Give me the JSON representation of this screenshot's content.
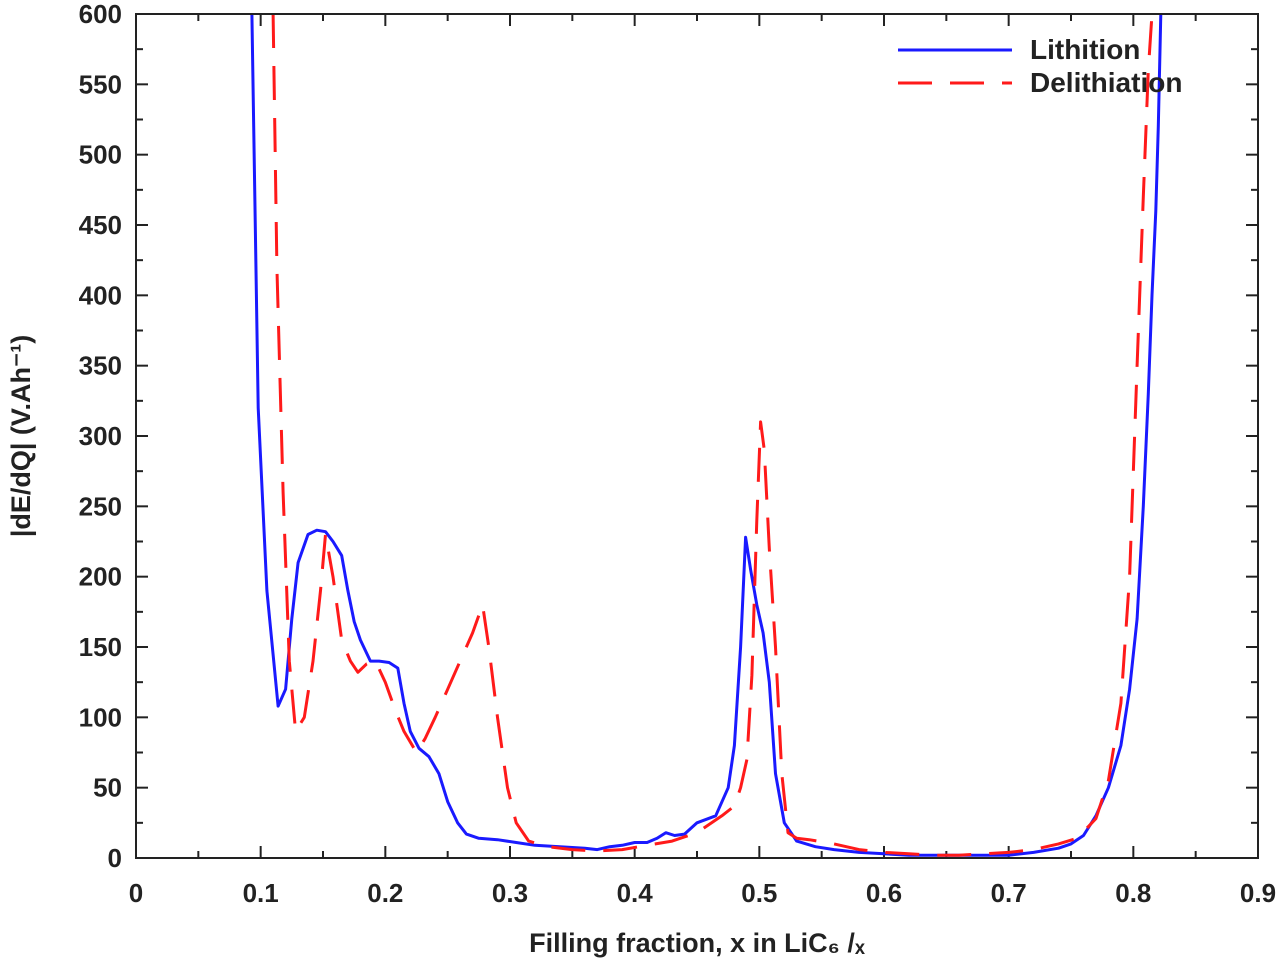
{
  "chart_data": {
    "type": "line",
    "title": "",
    "xlabel": "Filling fraction,  x in LiC₆ /ₓ",
    "ylabel": "|dE/dQ| (V.Ah⁻¹)",
    "xlim": [
      0,
      0.9
    ],
    "ylim": [
      0,
      600
    ],
    "xticks": [
      "0",
      "0.1",
      "0.2",
      "0.3",
      "0.4",
      "0.5",
      "0.6",
      "0.7",
      "0.8",
      "0.9"
    ],
    "yticks": [
      "0",
      "50",
      "100",
      "150",
      "200",
      "250",
      "300",
      "350",
      "400",
      "450",
      "500",
      "550",
      "600"
    ],
    "grid": false,
    "legend_position": "top-right",
    "series": [
      {
        "name": "Lithition",
        "color": "#1a1aff",
        "style": "solid",
        "x": [
          0.093,
          0.098,
          0.105,
          0.114,
          0.12,
          0.125,
          0.13,
          0.138,
          0.145,
          0.152,
          0.158,
          0.165,
          0.17,
          0.175,
          0.18,
          0.188,
          0.195,
          0.203,
          0.21,
          0.215,
          0.22,
          0.227,
          0.235,
          0.243,
          0.25,
          0.258,
          0.265,
          0.275,
          0.29,
          0.305,
          0.32,
          0.34,
          0.36,
          0.37,
          0.38,
          0.39,
          0.4,
          0.41,
          0.418,
          0.425,
          0.432,
          0.44,
          0.45,
          0.465,
          0.475,
          0.48,
          0.485,
          0.489,
          0.493,
          0.498,
          0.503,
          0.508,
          0.513,
          0.52,
          0.53,
          0.545,
          0.56,
          0.58,
          0.6,
          0.62,
          0.64,
          0.66,
          0.68,
          0.7,
          0.72,
          0.74,
          0.75,
          0.76,
          0.77,
          0.78,
          0.79,
          0.797,
          0.803,
          0.808,
          0.812,
          0.815,
          0.818,
          0.82,
          0.822
        ],
        "y": [
          600,
          320,
          190,
          108,
          120,
          170,
          210,
          230,
          233,
          232,
          225,
          215,
          190,
          168,
          155,
          140,
          140,
          139,
          135,
          110,
          90,
          78,
          72,
          60,
          40,
          25,
          17,
          14,
          13,
          11,
          9,
          8,
          7,
          6,
          8,
          9,
          11,
          11,
          14,
          18,
          16,
          17,
          25,
          30,
          50,
          80,
          150,
          228,
          205,
          180,
          160,
          125,
          60,
          25,
          12,
          8,
          6,
          4,
          3,
          2,
          2,
          2,
          2,
          2,
          4,
          7,
          10,
          16,
          30,
          50,
          80,
          120,
          170,
          250,
          330,
          400,
          460,
          520,
          600
        ]
      },
      {
        "name": "Delithiation",
        "color": "#ff1a1a",
        "style": "dashed",
        "x": [
          0.11,
          0.113,
          0.118,
          0.123,
          0.128,
          0.135,
          0.142,
          0.148,
          0.152,
          0.158,
          0.165,
          0.172,
          0.178,
          0.185,
          0.192,
          0.2,
          0.208,
          0.215,
          0.225,
          0.232,
          0.24,
          0.25,
          0.26,
          0.27,
          0.278,
          0.283,
          0.29,
          0.298,
          0.305,
          0.315,
          0.33,
          0.35,
          0.37,
          0.39,
          0.41,
          0.43,
          0.45,
          0.47,
          0.48,
          0.485,
          0.49,
          0.494,
          0.498,
          0.501,
          0.504,
          0.508,
          0.513,
          0.518,
          0.523,
          0.53,
          0.54,
          0.56,
          0.58,
          0.6,
          0.62,
          0.64,
          0.66,
          0.68,
          0.7,
          0.72,
          0.74,
          0.755,
          0.77,
          0.78,
          0.79,
          0.797,
          0.803,
          0.808,
          0.812,
          0.815
        ],
        "y": [
          600,
          420,
          260,
          140,
          90,
          100,
          140,
          190,
          230,
          200,
          155,
          140,
          132,
          138,
          140,
          125,
          105,
          90,
          75,
          85,
          100,
          120,
          140,
          160,
          180,
          150,
          100,
          50,
          25,
          12,
          8,
          6,
          5,
          6,
          9,
          12,
          18,
          30,
          37,
          50,
          70,
          130,
          240,
          310,
          290,
          220,
          150,
          60,
          18,
          14,
          13,
          10,
          6,
          4,
          3,
          2,
          2,
          3,
          4,
          6,
          10,
          14,
          28,
          55,
          110,
          200,
          350,
          470,
          560,
          600
        ]
      }
    ]
  }
}
